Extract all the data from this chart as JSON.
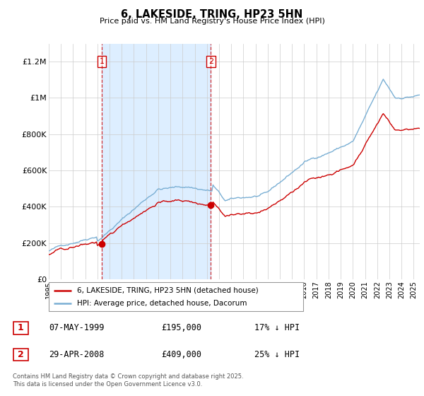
{
  "title": "6, LAKESIDE, TRING, HP23 5HN",
  "subtitle": "Price paid vs. HM Land Registry's House Price Index (HPI)",
  "ylabel_ticks": [
    "£0",
    "£200K",
    "£400K",
    "£600K",
    "£800K",
    "£1M",
    "£1.2M"
  ],
  "ylim": [
    0,
    1300000
  ],
  "yticks": [
    0,
    200000,
    400000,
    600000,
    800000,
    1000000,
    1200000
  ],
  "xlim_start": 1995.0,
  "xlim_end": 2025.5,
  "sale1_x": 1999.35,
  "sale1_y": 195000,
  "sale1_label": "1",
  "sale2_x": 2008.33,
  "sale2_y": 409000,
  "sale2_label": "2",
  "sale_color": "#cc0000",
  "hpi_color": "#7aafd4",
  "hpi_fill_color": "#ddeeff",
  "vline_color": "#cc0000",
  "grid_color": "#cccccc",
  "background_color": "#ffffff",
  "legend_label_property": "6, LAKESIDE, TRING, HP23 5HN (detached house)",
  "legend_label_hpi": "HPI: Average price, detached house, Dacorum",
  "table_entries": [
    {
      "num": "1",
      "date": "07-MAY-1999",
      "price": "£195,000",
      "hpi": "17% ↓ HPI"
    },
    {
      "num": "2",
      "date": "29-APR-2008",
      "price": "£409,000",
      "hpi": "25% ↓ HPI"
    }
  ],
  "footer": "Contains HM Land Registry data © Crown copyright and database right 2025.\nThis data is licensed under the Open Government Licence v3.0."
}
